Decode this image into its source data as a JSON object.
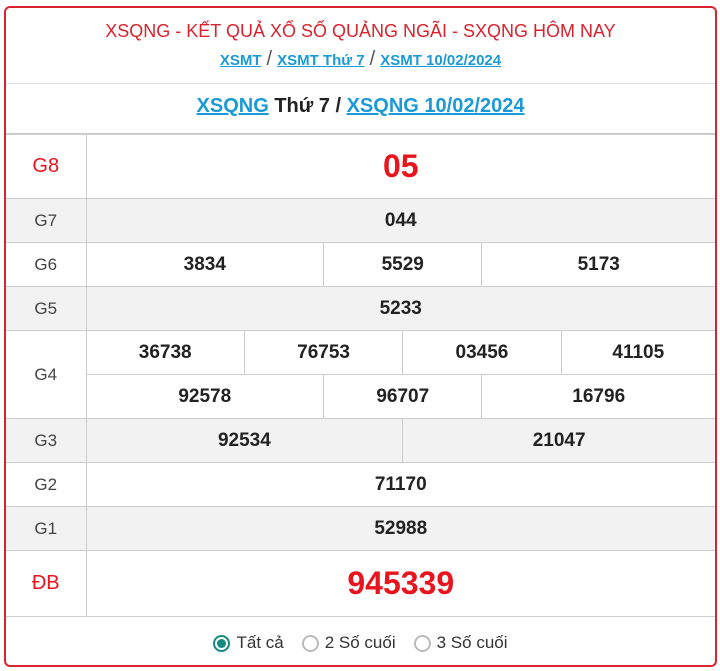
{
  "header": {
    "title": "XSQNG - KẾT QUẢ XỔ SỐ QUẢNG NGÃI - SXQNG HÔM NAY",
    "crumbs": [
      "XSMT",
      "XSMT Thứ 7",
      "XSMT 10/02/2024"
    ],
    "separator": "/"
  },
  "subtitle": {
    "link1": "XSQNG",
    "middle": " Thứ 7 / ",
    "link2": "XSQNG 10/02/2024"
  },
  "results": {
    "g8": {
      "label": "G8",
      "values": [
        "05"
      ]
    },
    "g7": {
      "label": "G7",
      "values": [
        "044"
      ]
    },
    "g6": {
      "label": "G6",
      "values": [
        "3834",
        "5529",
        "5173"
      ]
    },
    "g5": {
      "label": "G5",
      "values": [
        "5233"
      ]
    },
    "g4": {
      "label": "G4",
      "values": [
        "36738",
        "76753",
        "03456",
        "41105",
        "92578",
        "96707",
        "16796"
      ]
    },
    "g3": {
      "label": "G3",
      "values": [
        "92534",
        "21047"
      ]
    },
    "g2": {
      "label": "G2",
      "values": [
        "71170"
      ]
    },
    "g1": {
      "label": "G1",
      "values": [
        "52988"
      ]
    },
    "db": {
      "label": "ĐB",
      "values": [
        "945339"
      ]
    }
  },
  "filter": {
    "options": [
      "Tất cả",
      "2 Số cuối",
      "3 Số cuối"
    ],
    "selected": "Tất cả"
  },
  "colors": {
    "accent": "#d9232e",
    "link": "#1a9ad6",
    "radio": "#158a7e"
  }
}
